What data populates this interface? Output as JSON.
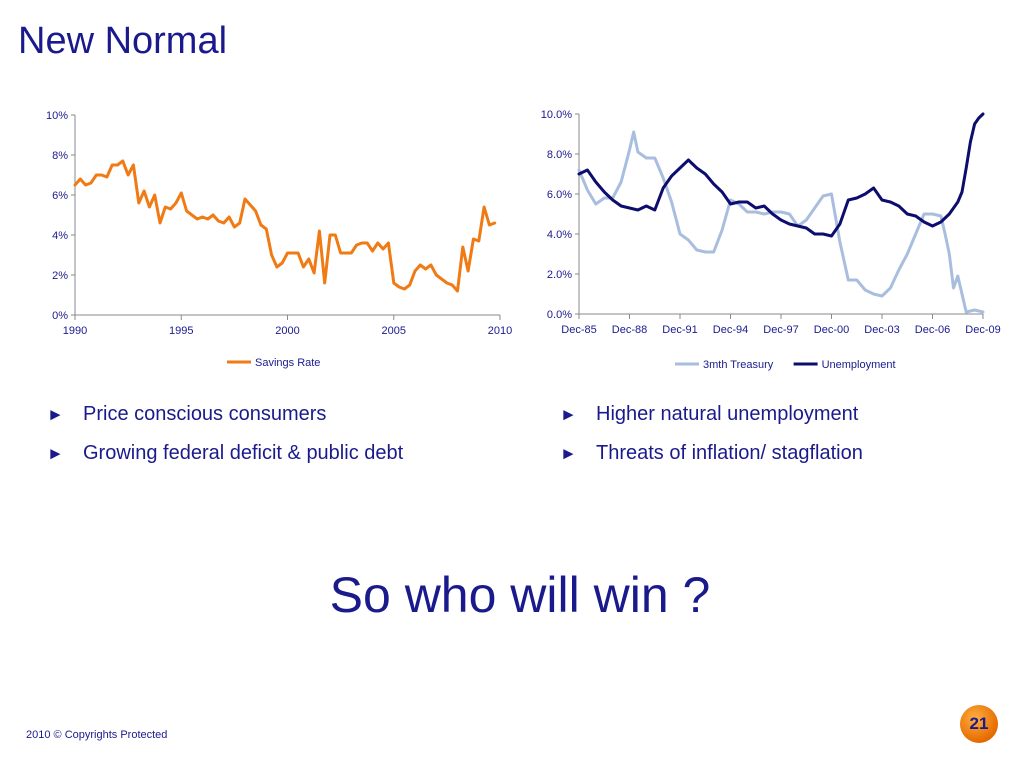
{
  "slide": {
    "title": "New Normal",
    "question": "So who will win ?",
    "footer": "2010 © Copyrights Protected",
    "page_number": "21",
    "bullet_glyph": "►",
    "bullets_left": [
      "Price conscious consumers",
      "Growing federal deficit & public debt"
    ],
    "bullets_right": [
      "Higher natural unemployment",
      "Threats of inflation/ stagflation"
    ]
  },
  "chart_data": [
    {
      "type": "line",
      "ylim": [
        0,
        10
      ],
      "xlim": [
        1990,
        2010
      ],
      "y_ticks": [
        "0%",
        "2%",
        "4%",
        "6%",
        "8%",
        "10%"
      ],
      "y_tick_values": [
        0,
        2,
        4,
        6,
        8,
        10
      ],
      "x_ticks": [
        "1990",
        "1995",
        "2000",
        "2005",
        "2010"
      ],
      "x_tick_values": [
        1990,
        1995,
        2000,
        2005,
        2010
      ],
      "legend_position": "bottom",
      "grid": false,
      "series": [
        {
          "name": "Savings Rate",
          "color": "#f07a14",
          "x": [
            1990.0,
            1990.25,
            1990.5,
            1990.75,
            1991.0,
            1991.25,
            1991.5,
            1991.75,
            1992.0,
            1992.25,
            1992.5,
            1992.75,
            1993.0,
            1993.25,
            1993.5,
            1993.75,
            1994.0,
            1994.25,
            1994.5,
            1994.75,
            1995.0,
            1995.25,
            1995.5,
            1995.75,
            1996.0,
            1996.25,
            1996.5,
            1996.75,
            1997.0,
            1997.25,
            1997.5,
            1997.75,
            1998.0,
            1998.25,
            1998.5,
            1998.75,
            1999.0,
            1999.25,
            1999.5,
            1999.75,
            2000.0,
            2000.25,
            2000.5,
            2000.75,
            2001.0,
            2001.25,
            2001.5,
            2001.75,
            2002.0,
            2002.25,
            2002.5,
            2002.75,
            2003.0,
            2003.25,
            2003.5,
            2003.75,
            2004.0,
            2004.25,
            2004.5,
            2004.75,
            2005.0,
            2005.25,
            2005.5,
            2005.75,
            2006.0,
            2006.25,
            2006.5,
            2006.75,
            2007.0,
            2007.25,
            2007.5,
            2007.75,
            2008.0,
            2008.25,
            2008.5,
            2008.75,
            2009.0,
            2009.25,
            2009.5,
            2009.75
          ],
          "y": [
            6.5,
            6.8,
            6.5,
            6.6,
            7.0,
            7.0,
            6.9,
            7.5,
            7.5,
            7.7,
            7.0,
            7.5,
            5.6,
            6.2,
            5.4,
            6.0,
            4.6,
            5.4,
            5.3,
            5.6,
            6.1,
            5.2,
            5.0,
            4.8,
            4.9,
            4.8,
            5.0,
            4.7,
            4.6,
            4.9,
            4.4,
            4.6,
            5.8,
            5.5,
            5.2,
            4.5,
            4.3,
            3.0,
            2.4,
            2.6,
            3.1,
            3.1,
            3.1,
            2.4,
            2.8,
            2.1,
            4.2,
            1.6,
            4.0,
            4.0,
            3.1,
            3.1,
            3.1,
            3.5,
            3.6,
            3.6,
            3.2,
            3.6,
            3.3,
            3.6,
            1.6,
            1.4,
            1.3,
            1.5,
            2.2,
            2.5,
            2.3,
            2.5,
            2.0,
            1.8,
            1.6,
            1.5,
            1.2,
            3.4,
            2.2,
            3.8,
            3.7,
            5.4,
            4.5,
            4.6
          ]
        }
      ]
    },
    {
      "type": "line",
      "ylim": [
        0,
        10
      ],
      "xlim": [
        "Dec-85",
        "Dec-09"
      ],
      "y_ticks": [
        "0.0%",
        "2.0%",
        "4.0%",
        "6.0%",
        "8.0%",
        "10.0%"
      ],
      "y_tick_values": [
        0,
        2,
        4,
        6,
        8,
        10
      ],
      "x_ticks": [
        "Dec-85",
        "Dec-88",
        "Dec-91",
        "Dec-94",
        "Dec-97",
        "Dec-00",
        "Dec-03",
        "Dec-06",
        "Dec-09"
      ],
      "legend_position": "bottom",
      "grid": false,
      "series": [
        {
          "name": "3mth Treasury",
          "color": "#a9bedf",
          "x": [
            "Dec-85",
            "Jun-86",
            "Dec-86",
            "Jun-87",
            "Dec-87",
            "Jun-88",
            "Dec-88",
            "Mar-89",
            "Jun-89",
            "Dec-89",
            "Jun-90",
            "Dec-90",
            "Jun-91",
            "Dec-91",
            "Jun-92",
            "Dec-92",
            "Jun-93",
            "Dec-93",
            "Jun-94",
            "Dec-94",
            "Jun-95",
            "Dec-95",
            "Jun-96",
            "Dec-96",
            "Jun-97",
            "Dec-97",
            "Jun-98",
            "Dec-98",
            "Jun-99",
            "Dec-99",
            "Jun-00",
            "Dec-00",
            "Jun-01",
            "Dec-01",
            "Jun-02",
            "Dec-02",
            "Jun-03",
            "Dec-03",
            "Jun-04",
            "Dec-04",
            "Jun-05",
            "Dec-05",
            "Jun-06",
            "Dec-06",
            "Jun-07",
            "Sep-07",
            "Dec-07",
            "Mar-08",
            "Jun-08",
            "Dec-08",
            "Jun-09",
            "Dec-09"
          ],
          "y": [
            7.2,
            6.2,
            5.5,
            5.8,
            5.8,
            6.6,
            8.2,
            9.1,
            8.1,
            7.8,
            7.8,
            6.8,
            5.6,
            4.0,
            3.7,
            3.2,
            3.1,
            3.1,
            4.2,
            5.7,
            5.5,
            5.1,
            5.1,
            5.0,
            5.1,
            5.1,
            5.0,
            4.4,
            4.7,
            5.3,
            5.9,
            6.0,
            3.6,
            1.7,
            1.7,
            1.2,
            1.0,
            0.9,
            1.3,
            2.2,
            3.0,
            4.0,
            5.0,
            5.0,
            4.9,
            4.0,
            3.0,
            1.3,
            1.9,
            0.1,
            0.2,
            0.1
          ]
        },
        {
          "name": "Unemployment",
          "color": "#0d0d6e",
          "x": [
            "Dec-85",
            "Jun-86",
            "Dec-86",
            "Jun-87",
            "Dec-87",
            "Jun-88",
            "Dec-88",
            "Jun-89",
            "Dec-89",
            "Jun-90",
            "Dec-90",
            "Jun-91",
            "Dec-91",
            "Jun-92",
            "Dec-92",
            "Jun-93",
            "Dec-93",
            "Jun-94",
            "Dec-94",
            "Jun-95",
            "Dec-95",
            "Jun-96",
            "Dec-96",
            "Jun-97",
            "Dec-97",
            "Jun-98",
            "Dec-98",
            "Jun-99",
            "Dec-99",
            "Jun-00",
            "Dec-00",
            "Jun-01",
            "Dec-01",
            "Jun-02",
            "Dec-02",
            "Jun-03",
            "Dec-03",
            "Jun-04",
            "Dec-04",
            "Jun-05",
            "Dec-05",
            "Jun-06",
            "Dec-06",
            "Jun-07",
            "Dec-07",
            "Jun-08",
            "Sep-08",
            "Dec-08",
            "Mar-09",
            "Jun-09",
            "Sep-09",
            "Dec-09"
          ],
          "y": [
            7.0,
            7.2,
            6.6,
            6.1,
            5.7,
            5.4,
            5.3,
            5.2,
            5.4,
            5.2,
            6.3,
            6.9,
            7.3,
            7.7,
            7.3,
            7.0,
            6.5,
            6.1,
            5.5,
            5.6,
            5.6,
            5.3,
            5.4,
            5.0,
            4.7,
            4.5,
            4.4,
            4.3,
            4.0,
            4.0,
            3.9,
            4.5,
            5.7,
            5.8,
            6.0,
            6.3,
            5.7,
            5.6,
            5.4,
            5.0,
            4.9,
            4.6,
            4.4,
            4.6,
            5.0,
            5.6,
            6.1,
            7.3,
            8.6,
            9.5,
            9.8,
            10.0
          ]
        }
      ]
    }
  ]
}
